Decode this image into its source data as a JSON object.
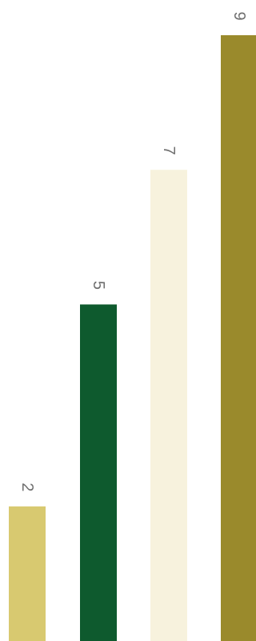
{
  "chart_data": {
    "type": "bar",
    "categories": [
      "",
      "",
      "",
      ""
    ],
    "values": [
      2,
      5,
      7,
      9
    ],
    "labels": [
      "2",
      "5",
      "7",
      "9"
    ],
    "colors": [
      "#d8c970",
      "#0e5a2e",
      "#f7f2dd",
      "#9a8a2c"
    ],
    "title": "",
    "xlabel": "",
    "ylabel": "",
    "ylim": [
      0,
      9
    ],
    "grid": false,
    "legend": "none"
  }
}
